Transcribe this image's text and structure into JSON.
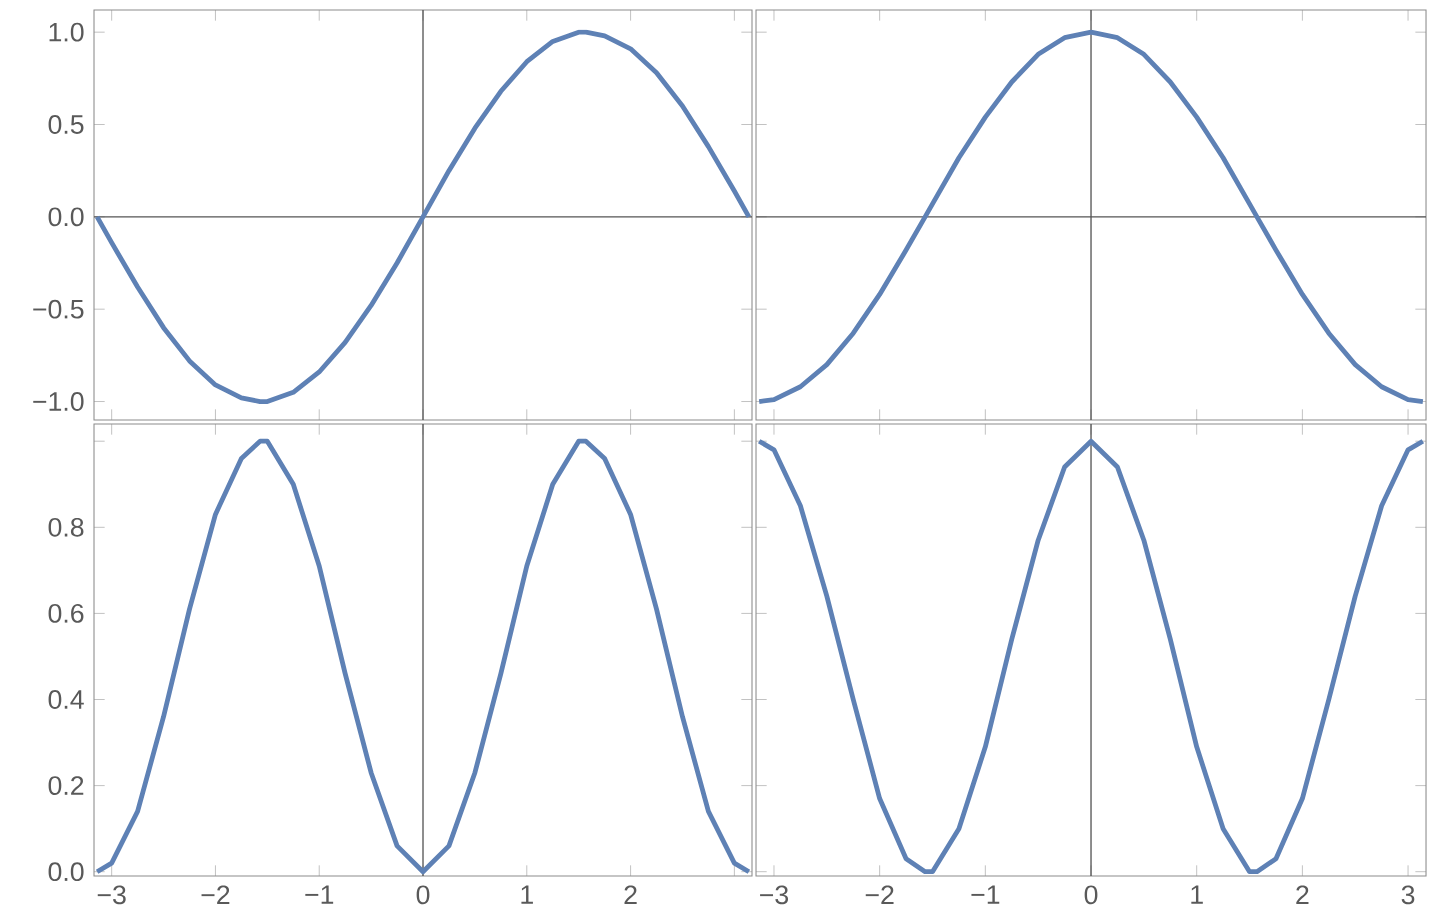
{
  "chart_data": [
    {
      "type": "line",
      "x": [
        -3.14,
        -3,
        -2.75,
        -2.5,
        -2.25,
        -2,
        -1.75,
        -1.57,
        -1.5,
        -1.25,
        -1,
        -0.75,
        -0.5,
        -0.25,
        0,
        0.25,
        0.5,
        0.75,
        1,
        1.25,
        1.5,
        1.57,
        1.75,
        2,
        2.25,
        2.5,
        2.75,
        3,
        3.14
      ],
      "series": [
        {
          "color": "#5e81b5",
          "values": [
            0,
            -0.14,
            -0.38,
            -0.6,
            -0.78,
            -0.91,
            -0.98,
            -1,
            -1,
            -0.95,
            -0.84,
            -0.68,
            -0.48,
            -0.25,
            0,
            0.25,
            0.48,
            0.68,
            0.84,
            0.95,
            1,
            1,
            0.98,
            0.91,
            0.78,
            0.6,
            0.38,
            0.14,
            0
          ]
        }
      ],
      "xlim": [
        -3.17,
        3.17
      ],
      "ylim": [
        -1.1,
        1.12
      ],
      "xticks": [
        -3,
        -2,
        -1,
        0,
        1,
        2,
        3
      ],
      "yticks": [
        {
          "value": -1,
          "label": "−1.0"
        },
        {
          "value": -0.5,
          "label": "−0.5"
        },
        {
          "value": 0,
          "label": "0.0"
        },
        {
          "value": 0.5,
          "label": "0.5"
        },
        {
          "value": 1,
          "label": "1.0"
        }
      ],
      "tick_labels": "y",
      "ref_lines": [
        {
          "axis": "x",
          "value": 0,
          "color": "#555555"
        },
        {
          "axis": "y",
          "value": 0,
          "color": "#555555"
        }
      ]
    },
    {
      "type": "line",
      "x": [
        -3.14,
        -3,
        -2.75,
        -2.5,
        -2.25,
        -2,
        -1.75,
        -1.57,
        -1.5,
        -1.25,
        -1,
        -0.75,
        -0.5,
        -0.25,
        0,
        0.25,
        0.5,
        0.75,
        1,
        1.25,
        1.5,
        1.57,
        1.75,
        2,
        2.25,
        2.5,
        2.75,
        3,
        3.14
      ],
      "series": [
        {
          "color": "#5e81b5",
          "values": [
            -1,
            -0.99,
            -0.92,
            -0.8,
            -0.63,
            -0.42,
            -0.18,
            0,
            0.07,
            0.32,
            0.54,
            0.73,
            0.88,
            0.97,
            1,
            0.97,
            0.88,
            0.73,
            0.54,
            0.32,
            0.07,
            0,
            -0.18,
            -0.42,
            -0.63,
            -0.8,
            -0.92,
            -0.99,
            -1
          ]
        }
      ],
      "xlim": [
        -3.17,
        3.17
      ],
      "ylim": [
        -1.1,
        1.12
      ],
      "xticks": [
        -3,
        -2,
        -1,
        0,
        1,
        2,
        3
      ],
      "yticks": [
        -1,
        -0.5,
        0,
        0.5,
        1
      ],
      "tick_labels": false,
      "ref_lines": [
        {
          "axis": "x",
          "value": 0,
          "color": "#555555"
        },
        {
          "axis": "y",
          "value": 0,
          "color": "#555555"
        }
      ]
    },
    {
      "type": "line",
      "x": [
        -3.14,
        -3,
        -2.75,
        -2.5,
        -2.25,
        -2,
        -1.75,
        -1.57,
        -1.5,
        -1.25,
        -1,
        -0.75,
        -0.5,
        -0.25,
        0,
        0.25,
        0.5,
        0.75,
        1,
        1.25,
        1.5,
        1.57,
        1.75,
        2,
        2.25,
        2.5,
        2.75,
        3,
        3.14
      ],
      "series": [
        {
          "color": "#5e81b5",
          "values": [
            0,
            0.02,
            0.14,
            0.36,
            0.61,
            0.83,
            0.96,
            1,
            1,
            0.9,
            0.71,
            0.46,
            0.23,
            0.06,
            0,
            0.06,
            0.23,
            0.46,
            0.71,
            0.9,
            1,
            1,
            0.96,
            0.83,
            0.61,
            0.36,
            0.14,
            0.02,
            0
          ]
        }
      ],
      "xlim": [
        -3.17,
        3.17
      ],
      "ylim": [
        -0.01,
        1.04
      ],
      "xticks": [
        {
          "value": -3,
          "label": "−3"
        },
        {
          "value": -2,
          "label": "−2"
        },
        {
          "value": -1,
          "label": "−1"
        },
        0,
        1,
        2,
        {
          "value": 3,
          "label": null
        }
      ],
      "yticks": [
        {
          "value": 0,
          "label": "0.0"
        },
        0.2,
        0.4,
        0.6,
        0.8,
        {
          "value": 1,
          "label": null
        }
      ],
      "ref_lines": [
        {
          "axis": "x",
          "value": 0,
          "color": "#555555"
        }
      ]
    },
    {
      "type": "line",
      "x": [
        -3.14,
        -3,
        -2.75,
        -2.5,
        -2.25,
        -2,
        -1.75,
        -1.57,
        -1.5,
        -1.25,
        -1,
        -0.75,
        -0.5,
        -0.25,
        0,
        0.25,
        0.5,
        0.75,
        1,
        1.25,
        1.5,
        1.57,
        1.75,
        2,
        2.25,
        2.5,
        2.75,
        3,
        3.14
      ],
      "series": [
        {
          "color": "#5e81b5",
          "values": [
            1,
            0.98,
            0.85,
            0.64,
            0.4,
            0.17,
            0.03,
            0,
            0,
            0.1,
            0.29,
            0.54,
            0.77,
            0.94,
            1,
            0.94,
            0.77,
            0.54,
            0.29,
            0.1,
            0,
            0,
            0.03,
            0.17,
            0.4,
            0.64,
            0.85,
            0.98,
            1
          ]
        }
      ],
      "xlim": [
        -3.17,
        3.17
      ],
      "ylim": [
        -0.01,
        1.04
      ],
      "xticks": [
        {
          "value": -3,
          "label": "−3"
        },
        {
          "value": -2,
          "label": "−2"
        },
        {
          "value": -1,
          "label": "−1"
        },
        0,
        1,
        2,
        3
      ],
      "yticks": [
        0,
        0.2,
        0.4,
        0.6,
        0.8,
        1
      ],
      "tick_labels": "x",
      "ref_lines": [
        {
          "axis": "x",
          "value": 0,
          "color": "#555555"
        }
      ]
    }
  ]
}
